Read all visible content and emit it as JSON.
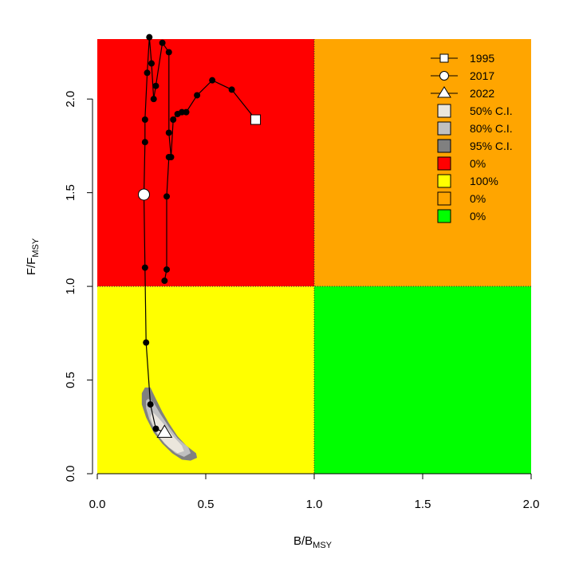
{
  "chart_data": {
    "type": "scatter",
    "subtype": "kobe-plot",
    "xlabel": {
      "main": "B/B",
      "sub": "MSY"
    },
    "ylabel": {
      "main": "F/F",
      "sub": "MSY"
    },
    "xlim": [
      0,
      2
    ],
    "ylim": [
      0,
      2.32
    ],
    "xticks": [
      0.0,
      0.5,
      1.0,
      1.5,
      2.0
    ],
    "xtick_labels": [
      "0.0",
      "0.5",
      "1.0",
      "1.5",
      "2.0"
    ],
    "yticks": [
      0.0,
      0.5,
      1.0,
      1.5,
      2.0
    ],
    "ytick_labels": [
      "0.0",
      "0.5",
      "1.0",
      "1.5",
      "2.0"
    ],
    "quadrant_colors": {
      "top_left": "#ff0000",
      "top_right": "#ffa500",
      "bottom_left": "#ffff00",
      "bottom_right": "#00ff00"
    },
    "reference_lines": {
      "x": 1.0,
      "y": 1.0
    },
    "trajectory": [
      {
        "x": 0.73,
        "y": 1.89
      },
      {
        "x": 0.62,
        "y": 2.05
      },
      {
        "x": 0.53,
        "y": 2.1
      },
      {
        "x": 0.46,
        "y": 2.02
      },
      {
        "x": 0.41,
        "y": 1.93
      },
      {
        "x": 0.39,
        "y": 1.93
      },
      {
        "x": 0.37,
        "y": 1.92
      },
      {
        "x": 0.35,
        "y": 1.89
      },
      {
        "x": 0.34,
        "y": 1.69
      },
      {
        "x": 0.33,
        "y": 1.82
      },
      {
        "x": 0.33,
        "y": 2.25
      },
      {
        "x": 0.3,
        "y": 2.3
      },
      {
        "x": 0.27,
        "y": 2.07
      },
      {
        "x": 0.26,
        "y": 2.0
      },
      {
        "x": 0.25,
        "y": 2.19
      },
      {
        "x": 0.24,
        "y": 2.33
      },
      {
        "x": 0.23,
        "y": 2.14
      },
      {
        "x": 0.22,
        "y": 1.89
      },
      {
        "x": 0.22,
        "y": 1.77
      },
      {
        "x": 0.215,
        "y": 1.49
      },
      {
        "x": 0.22,
        "y": 1.1
      },
      {
        "x": 0.225,
        "y": 0.7
      },
      {
        "x": 0.245,
        "y": 0.37
      },
      {
        "x": 0.27,
        "y": 0.24
      },
      {
        "x": 0.31,
        "y": 0.22
      }
    ],
    "second_branch": [
      {
        "x": 0.33,
        "y": 1.69
      },
      {
        "x": 0.32,
        "y": 1.48
      },
      {
        "x": 0.32,
        "y": 1.09
      },
      {
        "x": 0.31,
        "y": 1.03
      }
    ],
    "markers": [
      {
        "label": "1995",
        "shape": "square",
        "x": 0.73,
        "y": 1.89
      },
      {
        "label": "2017",
        "shape": "circle",
        "x": 0.215,
        "y": 1.49
      },
      {
        "label": "2022",
        "shape": "triangle",
        "x": 0.31,
        "y": 0.22
      }
    ],
    "confidence_regions": [
      {
        "label": "95% C.I.",
        "color": "#808080",
        "polygon": [
          [
            0.22,
            0.46
          ],
          [
            0.245,
            0.46
          ],
          [
            0.27,
            0.4
          ],
          [
            0.3,
            0.33
          ],
          [
            0.33,
            0.27
          ],
          [
            0.37,
            0.2
          ],
          [
            0.41,
            0.15
          ],
          [
            0.455,
            0.11
          ],
          [
            0.46,
            0.085
          ],
          [
            0.43,
            0.07
          ],
          [
            0.39,
            0.075
          ],
          [
            0.345,
            0.11
          ],
          [
            0.3,
            0.16
          ],
          [
            0.26,
            0.22
          ],
          [
            0.225,
            0.3
          ],
          [
            0.205,
            0.37
          ],
          [
            0.205,
            0.43
          ]
        ]
      },
      {
        "label": "80% C.I.",
        "color": "#c0c0c0",
        "polygon": [
          [
            0.235,
            0.4
          ],
          [
            0.26,
            0.38
          ],
          [
            0.29,
            0.32
          ],
          [
            0.33,
            0.25
          ],
          [
            0.37,
            0.19
          ],
          [
            0.42,
            0.14
          ],
          [
            0.43,
            0.11
          ],
          [
            0.4,
            0.09
          ],
          [
            0.36,
            0.11
          ],
          [
            0.31,
            0.16
          ],
          [
            0.27,
            0.22
          ],
          [
            0.24,
            0.29
          ],
          [
            0.225,
            0.35
          ],
          [
            0.225,
            0.39
          ]
        ]
      },
      {
        "label": "50% C.I.",
        "color": "#ebe6dc",
        "polygon": [
          [
            0.255,
            0.33
          ],
          [
            0.28,
            0.3
          ],
          [
            0.31,
            0.26
          ],
          [
            0.35,
            0.2
          ],
          [
            0.39,
            0.15
          ],
          [
            0.4,
            0.12
          ],
          [
            0.37,
            0.11
          ],
          [
            0.33,
            0.14
          ],
          [
            0.29,
            0.19
          ],
          [
            0.26,
            0.25
          ],
          [
            0.245,
            0.3
          ]
        ]
      }
    ],
    "legend": {
      "position": "top-right",
      "entries": [
        {
          "label": "1995",
          "kind": "line-square"
        },
        {
          "label": "2017",
          "kind": "line-circle"
        },
        {
          "label": "2022",
          "kind": "line-triangle"
        },
        {
          "label": "50% C.I.",
          "kind": "box",
          "color": "#ebe6dc"
        },
        {
          "label": "80% C.I.",
          "kind": "box",
          "color": "#c0c0c0"
        },
        {
          "label": "95% C.I.",
          "kind": "box",
          "color": "#808080"
        },
        {
          "label": "0%",
          "kind": "box",
          "color": "#ff0000"
        },
        {
          "label": "100%",
          "kind": "box",
          "color": "#ffff00"
        },
        {
          "label": "0%",
          "kind": "box",
          "color": "#ffa500"
        },
        {
          "label": "0%",
          "kind": "box",
          "color": "#00ff00"
        }
      ]
    }
  }
}
